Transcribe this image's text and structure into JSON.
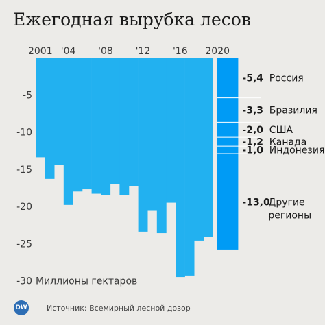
{
  "title": "Ежегодная вырубка лесов",
  "source": "Источник: Всемирный лесной дозор",
  "logo_text": "DW",
  "colors": {
    "background": "#ecebe8",
    "bar": "#22b1f0",
    "bar_2020": "#009bf5",
    "divider": "#ffffff",
    "logo": "#2d6db4"
  },
  "chart_data": {
    "type": "bar",
    "title": "Ежегодная вырубка лесов",
    "ylabel": "Миллионы гектаров",
    "ylim": [
      -30,
      0
    ],
    "yticks": [
      -5,
      -10,
      -15,
      -20,
      -25,
      -30
    ],
    "x_tick_labels": [
      {
        "year": 2001,
        "label": "2001"
      },
      {
        "year": 2004,
        "label": "'04"
      },
      {
        "year": 2008,
        "label": "'08"
      },
      {
        "year": 2012,
        "label": "'12"
      },
      {
        "year": 2016,
        "label": "'16"
      },
      {
        "year": 2020,
        "label": "2020"
      }
    ],
    "categories": [
      "2001",
      "2002",
      "2003",
      "2004",
      "2005",
      "2006",
      "2007",
      "2008",
      "2009",
      "2010",
      "2011",
      "2012",
      "2013",
      "2014",
      "2015",
      "2016",
      "2017",
      "2018",
      "2019"
    ],
    "values": [
      -13.4,
      -16.3,
      -14.4,
      -19.8,
      -18.0,
      -17.7,
      -18.3,
      -18.5,
      -17.0,
      -18.5,
      -17.3,
      -23.4,
      -20.6,
      -23.6,
      -19.5,
      -29.5,
      -29.3,
      -24.6,
      -24.1
    ],
    "stacked_2020": {
      "year": "2020",
      "total": -25.8,
      "segments": [
        {
          "name": "Россия",
          "value": -5.4,
          "value_label": "-5,4"
        },
        {
          "name": "Бразилия",
          "value": -3.3,
          "value_label": "-3,3"
        },
        {
          "name": "США",
          "value": -2.0,
          "value_label": "-2,0"
        },
        {
          "name": "Канада",
          "value": -1.2,
          "value_label": "-1,2"
        },
        {
          "name": "Индонезия",
          "value": -1.0,
          "value_label": "-1,0"
        },
        {
          "name": "Другие регионы",
          "name_lines": [
            "Другие",
            "регионы"
          ],
          "value": -13.0,
          "value_label": "-13,0"
        }
      ]
    }
  }
}
